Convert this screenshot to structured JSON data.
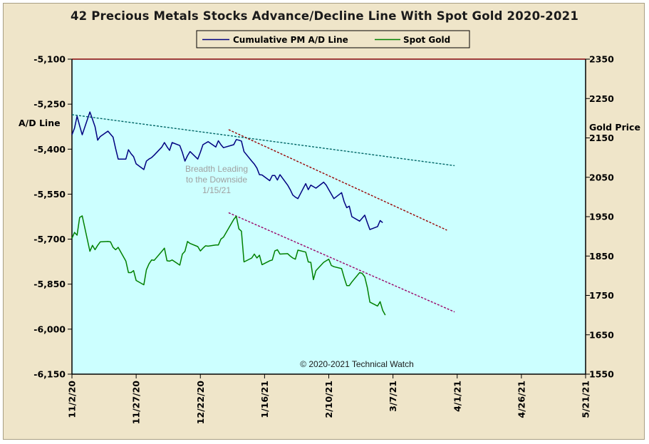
{
  "chart_data": {
    "type": "line",
    "title": "42 Precious Metals Stocks Advance/Decline Line With Spot Gold 2020-2021",
    "ylabel_left": "A/D Line",
    "ylabel_right": "Gold Price",
    "ylim_left": [
      -6150,
      -5100
    ],
    "ylim_right": [
      1550,
      2350
    ],
    "yticks_left": [
      -5100,
      -5250,
      -5400,
      -5550,
      -5700,
      -5850,
      -6000,
      -6150
    ],
    "yticks_right": [
      2350,
      2250,
      2150,
      2050,
      1950,
      1850,
      1750,
      1650,
      1550
    ],
    "yticklabels_left": [
      "-5,100",
      "-5,250",
      "-5,400",
      "-5,550",
      "-5,700",
      "-5,850",
      "-6,000",
      "-6,150"
    ],
    "yticklabels_right": [
      "2350",
      "2250",
      "2150",
      "2050",
      "1950",
      "1850",
      "1750",
      "1650",
      "1550"
    ],
    "x_range": [
      "2020-11-02",
      "2021-05-21"
    ],
    "xticks": [
      "2020-11-02",
      "2020-11-27",
      "2020-12-22",
      "2021-01-16",
      "2021-02-10",
      "2021-03-07",
      "2021-04-01",
      "2021-04-26",
      "2021-05-21"
    ],
    "xticklabels": [
      "11/2/20",
      "11/27/20",
      "12/22/20",
      "1/16/21",
      "2/10/21",
      "3/7/21",
      "4/1/21",
      "4/26/21",
      "5/21/21"
    ],
    "legend": {
      "placement": "top-center"
    },
    "series": [
      {
        "name": "Cumulative PM A/D Line",
        "axis": "left",
        "color": "#000080",
        "points": [
          [
            "2020-11-02",
            -5352
          ],
          [
            "2020-11-03",
            -5330
          ],
          [
            "2020-11-04",
            -5290
          ],
          [
            "2020-11-05",
            -5322
          ],
          [
            "2020-11-06",
            -5352
          ],
          [
            "2020-11-09",
            -5276
          ],
          [
            "2020-11-10",
            -5300
          ],
          [
            "2020-11-11",
            -5325
          ],
          [
            "2020-11-12",
            -5370
          ],
          [
            "2020-11-13",
            -5358
          ],
          [
            "2020-11-16",
            -5340
          ],
          [
            "2020-11-17",
            -5350
          ],
          [
            "2020-11-18",
            -5360
          ],
          [
            "2020-11-19",
            -5398
          ],
          [
            "2020-11-20",
            -5433
          ],
          [
            "2020-11-23",
            -5433
          ],
          [
            "2020-11-24",
            -5402
          ],
          [
            "2020-11-25",
            -5415
          ],
          [
            "2020-11-26",
            -5425
          ],
          [
            "2020-11-27",
            -5449
          ],
          [
            "2020-11-30",
            -5468
          ],
          [
            "2020-12-01",
            -5440
          ],
          [
            "2020-12-02",
            -5433
          ],
          [
            "2020-12-03",
            -5428
          ],
          [
            "2020-12-04",
            -5420
          ],
          [
            "2020-12-07",
            -5393
          ],
          [
            "2020-12-08",
            -5378
          ],
          [
            "2020-12-09",
            -5392
          ],
          [
            "2020-12-10",
            -5404
          ],
          [
            "2020-12-11",
            -5378
          ],
          [
            "2020-12-14",
            -5388
          ],
          [
            "2020-12-15",
            -5411
          ],
          [
            "2020-12-16",
            -5440
          ],
          [
            "2020-12-17",
            -5422
          ],
          [
            "2020-12-18",
            -5408
          ],
          [
            "2020-12-21",
            -5433
          ],
          [
            "2020-12-22",
            -5410
          ],
          [
            "2020-12-23",
            -5385
          ],
          [
            "2020-12-24",
            -5380
          ],
          [
            "2020-12-25",
            -5375
          ],
          [
            "2020-12-28",
            -5393
          ],
          [
            "2020-12-29",
            -5372
          ],
          [
            "2020-12-30",
            -5385
          ],
          [
            "2020-12-31",
            -5395
          ],
          [
            "2021-01-04",
            -5385
          ],
          [
            "2021-01-05",
            -5368
          ],
          [
            "2021-01-06",
            -5370
          ],
          [
            "2021-01-07",
            -5373
          ],
          [
            "2021-01-08",
            -5408
          ],
          [
            "2021-01-11",
            -5440
          ],
          [
            "2021-01-12",
            -5450
          ],
          [
            "2021-01-13",
            -5463
          ],
          [
            "2021-01-14",
            -5485
          ],
          [
            "2021-01-15",
            -5486
          ],
          [
            "2021-01-18",
            -5505
          ],
          [
            "2021-01-19",
            -5488
          ],
          [
            "2021-01-20",
            -5488
          ],
          [
            "2021-01-21",
            -5503
          ],
          [
            "2021-01-22",
            -5485
          ],
          [
            "2021-01-25",
            -5520
          ],
          [
            "2021-01-26",
            -5535
          ],
          [
            "2021-01-27",
            -5553
          ],
          [
            "2021-01-28",
            -5560
          ],
          [
            "2021-01-29",
            -5565
          ],
          [
            "2021-02-01",
            -5515
          ],
          [
            "2021-02-02",
            -5535
          ],
          [
            "2021-02-03",
            -5520
          ],
          [
            "2021-02-04",
            -5525
          ],
          [
            "2021-02-05",
            -5530
          ],
          [
            "2021-02-08",
            -5510
          ],
          [
            "2021-02-09",
            -5520
          ],
          [
            "2021-02-10",
            -5535
          ],
          [
            "2021-02-11",
            -5550
          ],
          [
            "2021-02-12",
            -5565
          ],
          [
            "2021-02-15",
            -5545
          ],
          [
            "2021-02-16",
            -5575
          ],
          [
            "2021-02-17",
            -5595
          ],
          [
            "2021-02-18",
            -5590
          ],
          [
            "2021-02-19",
            -5625
          ],
          [
            "2021-02-22",
            -5640
          ],
          [
            "2021-02-23",
            -5630
          ],
          [
            "2021-02-24",
            -5620
          ],
          [
            "2021-02-25",
            -5645
          ],
          [
            "2021-02-26",
            -5668
          ],
          [
            "2021-03-01",
            -5658
          ],
          [
            "2021-03-02",
            -5638
          ],
          [
            "2021-03-03",
            -5645
          ]
        ]
      },
      {
        "name": "Spot Gold",
        "axis": "right",
        "color": "#008000",
        "points": [
          [
            "2020-11-02",
            1895
          ],
          [
            "2020-11-03",
            1910
          ],
          [
            "2020-11-04",
            1903
          ],
          [
            "2020-11-05",
            1948
          ],
          [
            "2020-11-06",
            1952
          ],
          [
            "2020-11-09",
            1862
          ],
          [
            "2020-11-10",
            1877
          ],
          [
            "2020-11-11",
            1866
          ],
          [
            "2020-11-12",
            1877
          ],
          [
            "2020-11-13",
            1886
          ],
          [
            "2020-11-16",
            1887
          ],
          [
            "2020-11-17",
            1886
          ],
          [
            "2020-11-18",
            1872
          ],
          [
            "2020-11-19",
            1866
          ],
          [
            "2020-11-20",
            1872
          ],
          [
            "2020-11-23",
            1837
          ],
          [
            "2020-11-24",
            1808
          ],
          [
            "2020-11-25",
            1808
          ],
          [
            "2020-11-26",
            1813
          ],
          [
            "2020-11-27",
            1788
          ],
          [
            "2020-11-30",
            1777
          ],
          [
            "2020-12-01",
            1815
          ],
          [
            "2020-12-02",
            1830
          ],
          [
            "2020-12-03",
            1840
          ],
          [
            "2020-12-04",
            1839
          ],
          [
            "2020-12-07",
            1862
          ],
          [
            "2020-12-08",
            1870
          ],
          [
            "2020-12-09",
            1838
          ],
          [
            "2020-12-10",
            1837
          ],
          [
            "2020-12-11",
            1840
          ],
          [
            "2020-12-14",
            1827
          ],
          [
            "2020-12-15",
            1855
          ],
          [
            "2020-12-16",
            1862
          ],
          [
            "2020-12-17",
            1887
          ],
          [
            "2020-12-18",
            1882
          ],
          [
            "2020-12-21",
            1874
          ],
          [
            "2020-12-22",
            1863
          ],
          [
            "2020-12-23",
            1870
          ],
          [
            "2020-12-24",
            1876
          ],
          [
            "2020-12-25",
            1875
          ],
          [
            "2020-12-28",
            1878
          ],
          [
            "2020-12-29",
            1878
          ],
          [
            "2020-12-30",
            1893
          ],
          [
            "2020-12-31",
            1898
          ],
          [
            "2021-01-04",
            1943
          ],
          [
            "2021-01-05",
            1951
          ],
          [
            "2021-01-06",
            1919
          ],
          [
            "2021-01-07",
            1913
          ],
          [
            "2021-01-08",
            1835
          ],
          [
            "2021-01-11",
            1845
          ],
          [
            "2021-01-12",
            1855
          ],
          [
            "2021-01-13",
            1845
          ],
          [
            "2021-01-14",
            1852
          ],
          [
            "2021-01-15",
            1828
          ],
          [
            "2021-01-18",
            1838
          ],
          [
            "2021-01-19",
            1840
          ],
          [
            "2021-01-20",
            1863
          ],
          [
            "2021-01-21",
            1866
          ],
          [
            "2021-01-22",
            1855
          ],
          [
            "2021-01-25",
            1856
          ],
          [
            "2021-01-26",
            1850
          ],
          [
            "2021-01-27",
            1845
          ],
          [
            "2021-01-28",
            1842
          ],
          [
            "2021-01-29",
            1865
          ],
          [
            "2021-02-01",
            1860
          ],
          [
            "2021-02-02",
            1835
          ],
          [
            "2021-02-03",
            1834
          ],
          [
            "2021-02-04",
            1790
          ],
          [
            "2021-02-05",
            1813
          ],
          [
            "2021-02-08",
            1834
          ],
          [
            "2021-02-09",
            1838
          ],
          [
            "2021-02-10",
            1842
          ],
          [
            "2021-02-11",
            1826
          ],
          [
            "2021-02-12",
            1823
          ],
          [
            "2021-02-15",
            1818
          ],
          [
            "2021-02-16",
            1795
          ],
          [
            "2021-02-17",
            1775
          ],
          [
            "2021-02-18",
            1775
          ],
          [
            "2021-02-19",
            1784
          ],
          [
            "2021-02-22",
            1808
          ],
          [
            "2021-02-23",
            1806
          ],
          [
            "2021-02-24",
            1797
          ],
          [
            "2021-02-25",
            1770
          ],
          [
            "2021-02-26",
            1733
          ],
          [
            "2021-03-01",
            1723
          ],
          [
            "2021-03-02",
            1734
          ],
          [
            "2021-03-03",
            1712
          ],
          [
            "2021-03-04",
            1700
          ]
        ]
      }
    ],
    "trendlines": [
      {
        "axis": "left",
        "color": "#006666",
        "from": [
          "2020-11-02",
          -5285
        ],
        "to": [
          "2021-03-31",
          -5455
        ]
      },
      {
        "axis": "left",
        "color": "#990000",
        "from": [
          "2021-01-02",
          -5335
        ],
        "to": [
          "2021-03-28",
          -5670
        ]
      },
      {
        "axis": "right",
        "color": "#990066",
        "from": [
          "2021-01-02",
          1960
        ],
        "to": [
          "2021-03-31",
          1708
        ]
      }
    ],
    "annotations": [
      {
        "text": "Breadth Leading to the Downside 1/15/21",
        "lines": [
          "Breadth Leading",
          "to the Downside",
          "1/15/21"
        ],
        "color": "#a0a0a0"
      },
      {
        "text": "© 2020-2021 Technical Watch",
        "color": "#1a1a1a"
      }
    ],
    "grid": false,
    "plot_background": "#ccffff",
    "frame_background": "#efe5c9"
  }
}
